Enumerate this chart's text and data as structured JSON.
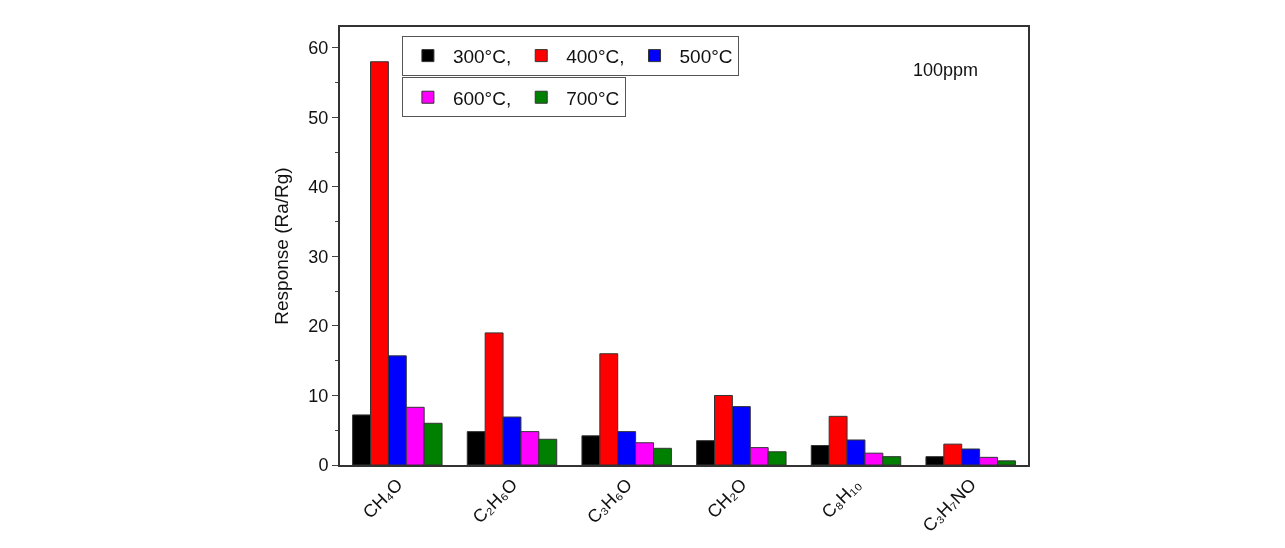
{
  "chart_data": {
    "type": "bar",
    "ylabel": "Response (Ra/Rg)",
    "categories": [
      "CH₄O",
      "C₂H₆O",
      "C₃H₆O",
      "CH₂O",
      "C₈H₁₀",
      "C₃H₇NO"
    ],
    "series": [
      {
        "name": "300°C,",
        "color": "#000000",
        "values": [
          7.2,
          4.8,
          4.2,
          3.5,
          2.8,
          1.2
        ]
      },
      {
        "name": "400°C,",
        "color": "#ff0000",
        "values": [
          58,
          19,
          16,
          10,
          7,
          3
        ]
      },
      {
        "name": "500°C",
        "color": "#0000ff",
        "values": [
          15.7,
          6.9,
          4.8,
          8.4,
          3.6,
          2.3
        ]
      },
      {
        "name": "600°C,",
        "color": "#ff00ff",
        "values": [
          8.3,
          4.8,
          3.2,
          2.5,
          1.7,
          1.1
        ]
      },
      {
        "name": "700°C",
        "color": "#008000",
        "values": [
          6.0,
          3.7,
          2.4,
          1.9,
          1.2,
          0.6
        ]
      }
    ],
    "ylim": [
      0,
      63
    ],
    "yticks": [
      0,
      10,
      20,
      30,
      40,
      50,
      60
    ],
    "annotations": [
      "100ppm"
    ],
    "legend": "top left"
  }
}
